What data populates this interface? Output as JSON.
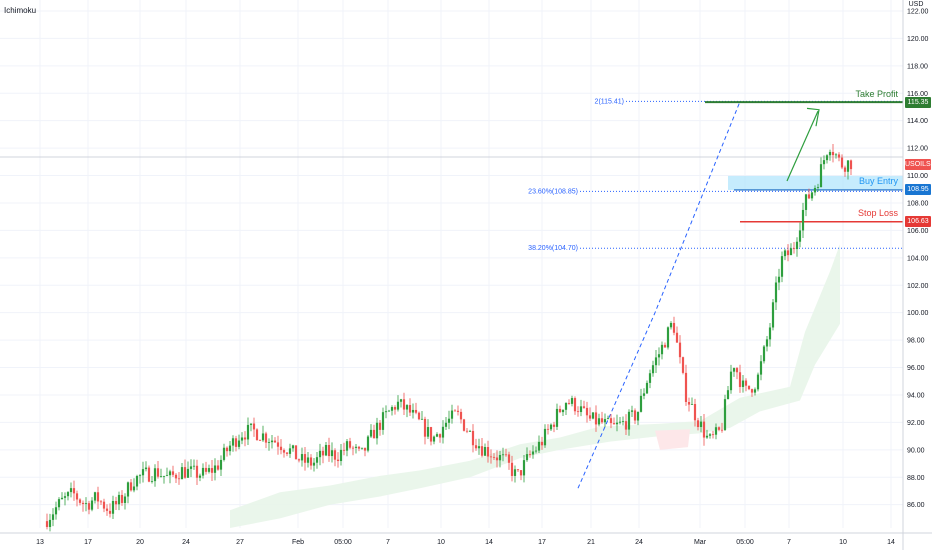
{
  "indicator": "Ichimoku",
  "currency_label": "USD",
  "symbol_tag": "USOILSPOT",
  "levels": {
    "take_profit": {
      "label": "Take Profit",
      "price": 115.35,
      "tag": "115.35",
      "color": "#2e7d32"
    },
    "buy_entry": {
      "label": "Buy Entry",
      "price": 108.95,
      "tag": "108.95",
      "color": "#2196f3"
    },
    "stop_loss": {
      "label": "Stop Loss",
      "price": 106.63,
      "tag": "106.63",
      "color": "#e53935"
    }
  },
  "fib_levels": [
    {
      "label": "2(115.41)",
      "price": 115.41
    },
    {
      "label": "23.60%(108.85)",
      "price": 108.85
    },
    {
      "label": "38.20%(104.70)",
      "price": 104.7
    }
  ],
  "colors": {
    "up": "#26a69a",
    "up_body": "#2e9e3e",
    "down": "#ef5350",
    "cloud": "#e8f5e9",
    "cloud_red": "#fde7e9",
    "fib": "#2962ff",
    "grid": "#f0f3fa"
  },
  "chart_data": {
    "type": "candlestick",
    "symbol": "USOILSPOT",
    "x_tick_labels": [
      "13",
      "17",
      "20",
      "24",
      "27",
      "Feb",
      "05:00",
      "7",
      "10",
      "14",
      "17",
      "21",
      "24",
      "Mar",
      "05:00",
      "7",
      "10",
      "14"
    ],
    "y_tick_labels": [
      "86.00",
      "88.00",
      "90.00",
      "92.00",
      "94.00",
      "96.00",
      "98.00",
      "100.00",
      "102.00",
      "104.00",
      "106.00",
      "108.00",
      "110.00",
      "112.00",
      "114.00",
      "116.00",
      "118.00",
      "120.00",
      "122.00"
    ],
    "ylim": [
      84.3,
      122.8
    ],
    "last_price": 111.0,
    "price_path": [
      [
        0,
        84.8
      ],
      [
        8,
        86.2
      ],
      [
        14,
        86.8
      ],
      [
        20,
        86.0
      ],
      [
        26,
        86.5
      ],
      [
        32,
        85.6
      ],
      [
        38,
        86.3
      ],
      [
        44,
        87.8
      ],
      [
        50,
        88.2
      ],
      [
        56,
        88.4
      ],
      [
        62,
        87.9
      ],
      [
        68,
        88.5
      ],
      [
        74,
        88.3
      ],
      [
        80,
        88.2
      ],
      [
        86,
        88.8
      ],
      [
        92,
        90.2
      ],
      [
        98,
        91.2
      ],
      [
        104,
        91.4
      ],
      [
        110,
        91.0
      ],
      [
        116,
        90.6
      ],
      [
        122,
        90.0
      ],
      [
        128,
        89.2
      ],
      [
        134,
        89.0
      ],
      [
        140,
        89.8
      ],
      [
        146,
        89.6
      ],
      [
        152,
        90.3
      ],
      [
        158,
        89.5
      ],
      [
        164,
        91.2
      ],
      [
        170,
        92.4
      ],
      [
        176,
        93.4
      ],
      [
        182,
        92.8
      ],
      [
        188,
        91.8
      ],
      [
        194,
        90.8
      ],
      [
        200,
        91.9
      ],
      [
        206,
        92.6
      ],
      [
        212,
        91.3
      ],
      [
        218,
        90.2
      ],
      [
        224,
        89.7
      ],
      [
        230,
        89.2
      ],
      [
        236,
        88.0
      ],
      [
        242,
        89.5
      ],
      [
        248,
        90.5
      ],
      [
        254,
        92.0
      ],
      [
        260,
        93.6
      ],
      [
        266,
        93.2
      ],
      [
        272,
        92.2
      ],
      [
        278,
        92.0
      ],
      [
        284,
        91.6
      ],
      [
        290,
        92.0
      ],
      [
        296,
        92.6
      ],
      [
        302,
        95.6
      ],
      [
        308,
        97.3
      ],
      [
        314,
        99.4
      ],
      [
        320,
        94.2
      ],
      [
        326,
        92.3
      ],
      [
        332,
        90.6
      ],
      [
        338,
        91.4
      ],
      [
        344,
        96.5
      ],
      [
        350,
        94.2
      ],
      [
        356,
        95.0
      ],
      [
        362,
        98.6
      ],
      [
        368,
        103.8
      ],
      [
        374,
        104.6
      ],
      [
        380,
        108.0
      ],
      [
        386,
        109.5
      ],
      [
        392,
        112.4
      ],
      [
        398,
        110.8
      ],
      [
        404,
        111.0
      ]
    ]
  }
}
